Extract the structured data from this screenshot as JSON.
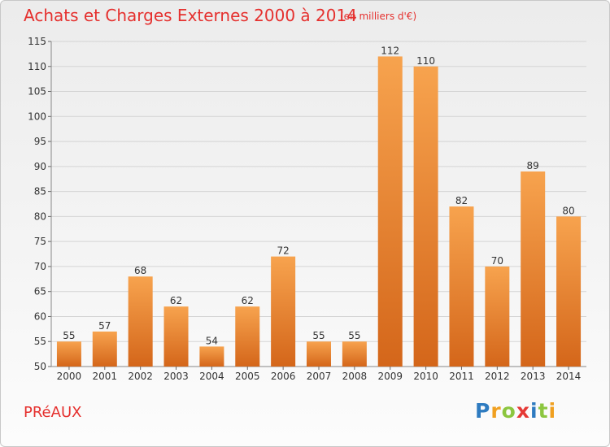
{
  "title": "Achats et Charges Externes 2000 à 2014",
  "subtitle": "(en milliers d'€)",
  "commune": "PRéAUX",
  "brand": {
    "letters": [
      "P",
      "r",
      "o",
      "x",
      "i",
      "t",
      "i"
    ],
    "colors": [
      "#2e7bc0",
      "#f0a020",
      "#8cc63f",
      "#e53935",
      "#2e7bc0",
      "#8cc63f",
      "#f0a020"
    ]
  },
  "colors": {
    "title": "#e5302e",
    "bar_light": "#f7a34e",
    "bar_dark": "#d4661a",
    "grid": "#d4d4d4",
    "axis_text": "#333333"
  },
  "chart_data": {
    "type": "bar",
    "title": "Achats et Charges Externes 2000 à 2014",
    "subtitle": "(en milliers d'€)",
    "xlabel": "",
    "ylabel": "",
    "categories": [
      "2000",
      "2001",
      "2002",
      "2003",
      "2004",
      "2005",
      "2006",
      "2007",
      "2008",
      "2009",
      "2010",
      "2011",
      "2012",
      "2013",
      "2014"
    ],
    "values": [
      55,
      57,
      68,
      62,
      54,
      62,
      72,
      55,
      55,
      112,
      110,
      82,
      70,
      89,
      80
    ],
    "ylim": [
      50,
      115
    ],
    "yticks": [
      50,
      55,
      60,
      65,
      70,
      75,
      80,
      85,
      90,
      95,
      100,
      105,
      110,
      115
    ],
    "grid": true,
    "data_labels": true
  }
}
